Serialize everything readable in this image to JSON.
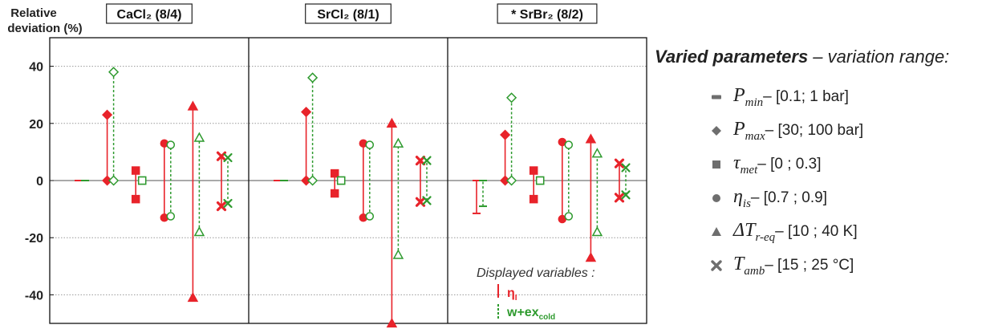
{
  "chart_data": {
    "type": "error-bar",
    "ylabel": "Relative deviation (%)",
    "ylim": [
      -50,
      50
    ],
    "yticks": [
      40,
      20,
      0,
      -20,
      -40
    ],
    "grid": true,
    "panels": [
      {
        "title": "CaCl₂ (8/4)",
        "groups": [
          {
            "param": "Pmin",
            "marker": "dash",
            "eta": {
              "low": 0,
              "high": 0
            },
            "w": {
              "low": 0,
              "high": 0
            }
          },
          {
            "param": "Pmax",
            "marker": "diamond",
            "eta": {
              "low": 0,
              "high": 23
            },
            "w": {
              "low": 0,
              "high": 38
            }
          },
          {
            "param": "tau_met",
            "marker": "square",
            "eta": {
              "low": -6.5,
              "high": 3.5
            },
            "w": {
              "low": 0,
              "high": 0
            }
          },
          {
            "param": "eta_is",
            "marker": "circle",
            "eta": {
              "low": -13,
              "high": 13
            },
            "w": {
              "low": -12.5,
              "high": 12.5
            }
          },
          {
            "param": "dT_r_eq",
            "marker": "triangle",
            "eta": {
              "low": -41,
              "high": 26
            },
            "w": {
              "low": -18,
              "high": 15
            }
          },
          {
            "param": "T_amb",
            "marker": "cross",
            "eta": {
              "low": -9,
              "high": 8.5
            },
            "w": {
              "low": -8,
              "high": 8
            }
          }
        ]
      },
      {
        "title": "SrCl₂ (8/1)",
        "groups": [
          {
            "param": "Pmin",
            "marker": "dash",
            "eta": {
              "low": 0,
              "high": 0
            },
            "w": {
              "low": 0,
              "high": 0
            }
          },
          {
            "param": "Pmax",
            "marker": "diamond",
            "eta": {
              "low": 0,
              "high": 24
            },
            "w": {
              "low": 0,
              "high": 36
            }
          },
          {
            "param": "tau_met",
            "marker": "square",
            "eta": {
              "low": -4.5,
              "high": 2.5
            },
            "w": {
              "low": 0,
              "high": 0
            }
          },
          {
            "param": "eta_is",
            "marker": "circle",
            "eta": {
              "low": -13,
              "high": 13
            },
            "w": {
              "low": -12.5,
              "high": 12.5
            }
          },
          {
            "param": "dT_r_eq",
            "marker": "triangle",
            "eta": {
              "low": -50,
              "high": 20
            },
            "w": {
              "low": -26,
              "high": 13
            }
          },
          {
            "param": "T_amb",
            "marker": "cross",
            "eta": {
              "low": -7.5,
              "high": 7
            },
            "w": {
              "low": -7,
              "high": 7
            }
          }
        ]
      },
      {
        "title": "* SrBr₂ (8/2)",
        "groups": [
          {
            "param": "Pmin",
            "marker": "dash",
            "eta": {
              "low": -11.5,
              "high": 0
            },
            "w": {
              "low": -9,
              "high": 0
            }
          },
          {
            "param": "Pmax",
            "marker": "diamond",
            "eta": {
              "low": 0,
              "high": 16
            },
            "w": {
              "low": 0,
              "high": 29
            }
          },
          {
            "param": "tau_met",
            "marker": "square",
            "eta": {
              "low": -6.5,
              "high": 3.5
            },
            "w": {
              "low": 0,
              "high": 0
            }
          },
          {
            "param": "eta_is",
            "marker": "circle",
            "eta": {
              "low": -13.5,
              "high": 13.5
            },
            "w": {
              "low": -12.5,
              "high": 12.5
            }
          },
          {
            "param": "dT_r_eq",
            "marker": "triangle",
            "eta": {
              "low": -27,
              "high": 14.5
            },
            "w": {
              "low": -18,
              "high": 9.5
            }
          },
          {
            "param": "T_amb",
            "marker": "cross",
            "eta": {
              "low": -6,
              "high": 6
            },
            "w": {
              "low": -5,
              "high": 4.5
            }
          }
        ]
      }
    ],
    "series": [
      {
        "key": "eta",
        "name": "ηI",
        "color": "#e8232a",
        "line": "solid",
        "fill": "filled"
      },
      {
        "key": "w",
        "name": "w+excold",
        "color": "#2e9a2e",
        "line": "dashed",
        "fill": "hollow"
      }
    ],
    "displayed_legend": {
      "title": "Displayed variables :",
      "eta_main": "η",
      "eta_sub": "I",
      "w_main": "w+ex",
      "w_sub": "cold"
    }
  },
  "varied_legend": {
    "title_bold": "Varied parameters",
    "title_rest": " – variation range:",
    "items": [
      {
        "icon": "dash-icon",
        "symbol": "P",
        "sub": "min",
        "range": " – [0.1; 1 bar]"
      },
      {
        "icon": "diamond-icon",
        "symbol": "P",
        "sub": "max",
        "range": " – [30; 100 bar]"
      },
      {
        "icon": "square-icon",
        "symbol": "τ",
        "sub": "met",
        "range": " – [0 ; 0.3]"
      },
      {
        "icon": "circle-icon",
        "symbol": "η",
        "sub": "is",
        "range": " – [0.7 ; 0.9]"
      },
      {
        "icon": "triangle-icon",
        "symbol": "ΔT",
        "sub": "r-eq",
        "range": " – [10 ; 40 K]"
      },
      {
        "icon": "cross-icon",
        "symbol": "T",
        "sub": "amb",
        "range": " – [15 ; 25 °C]"
      }
    ],
    "icon_color": "#6e6e6e"
  }
}
